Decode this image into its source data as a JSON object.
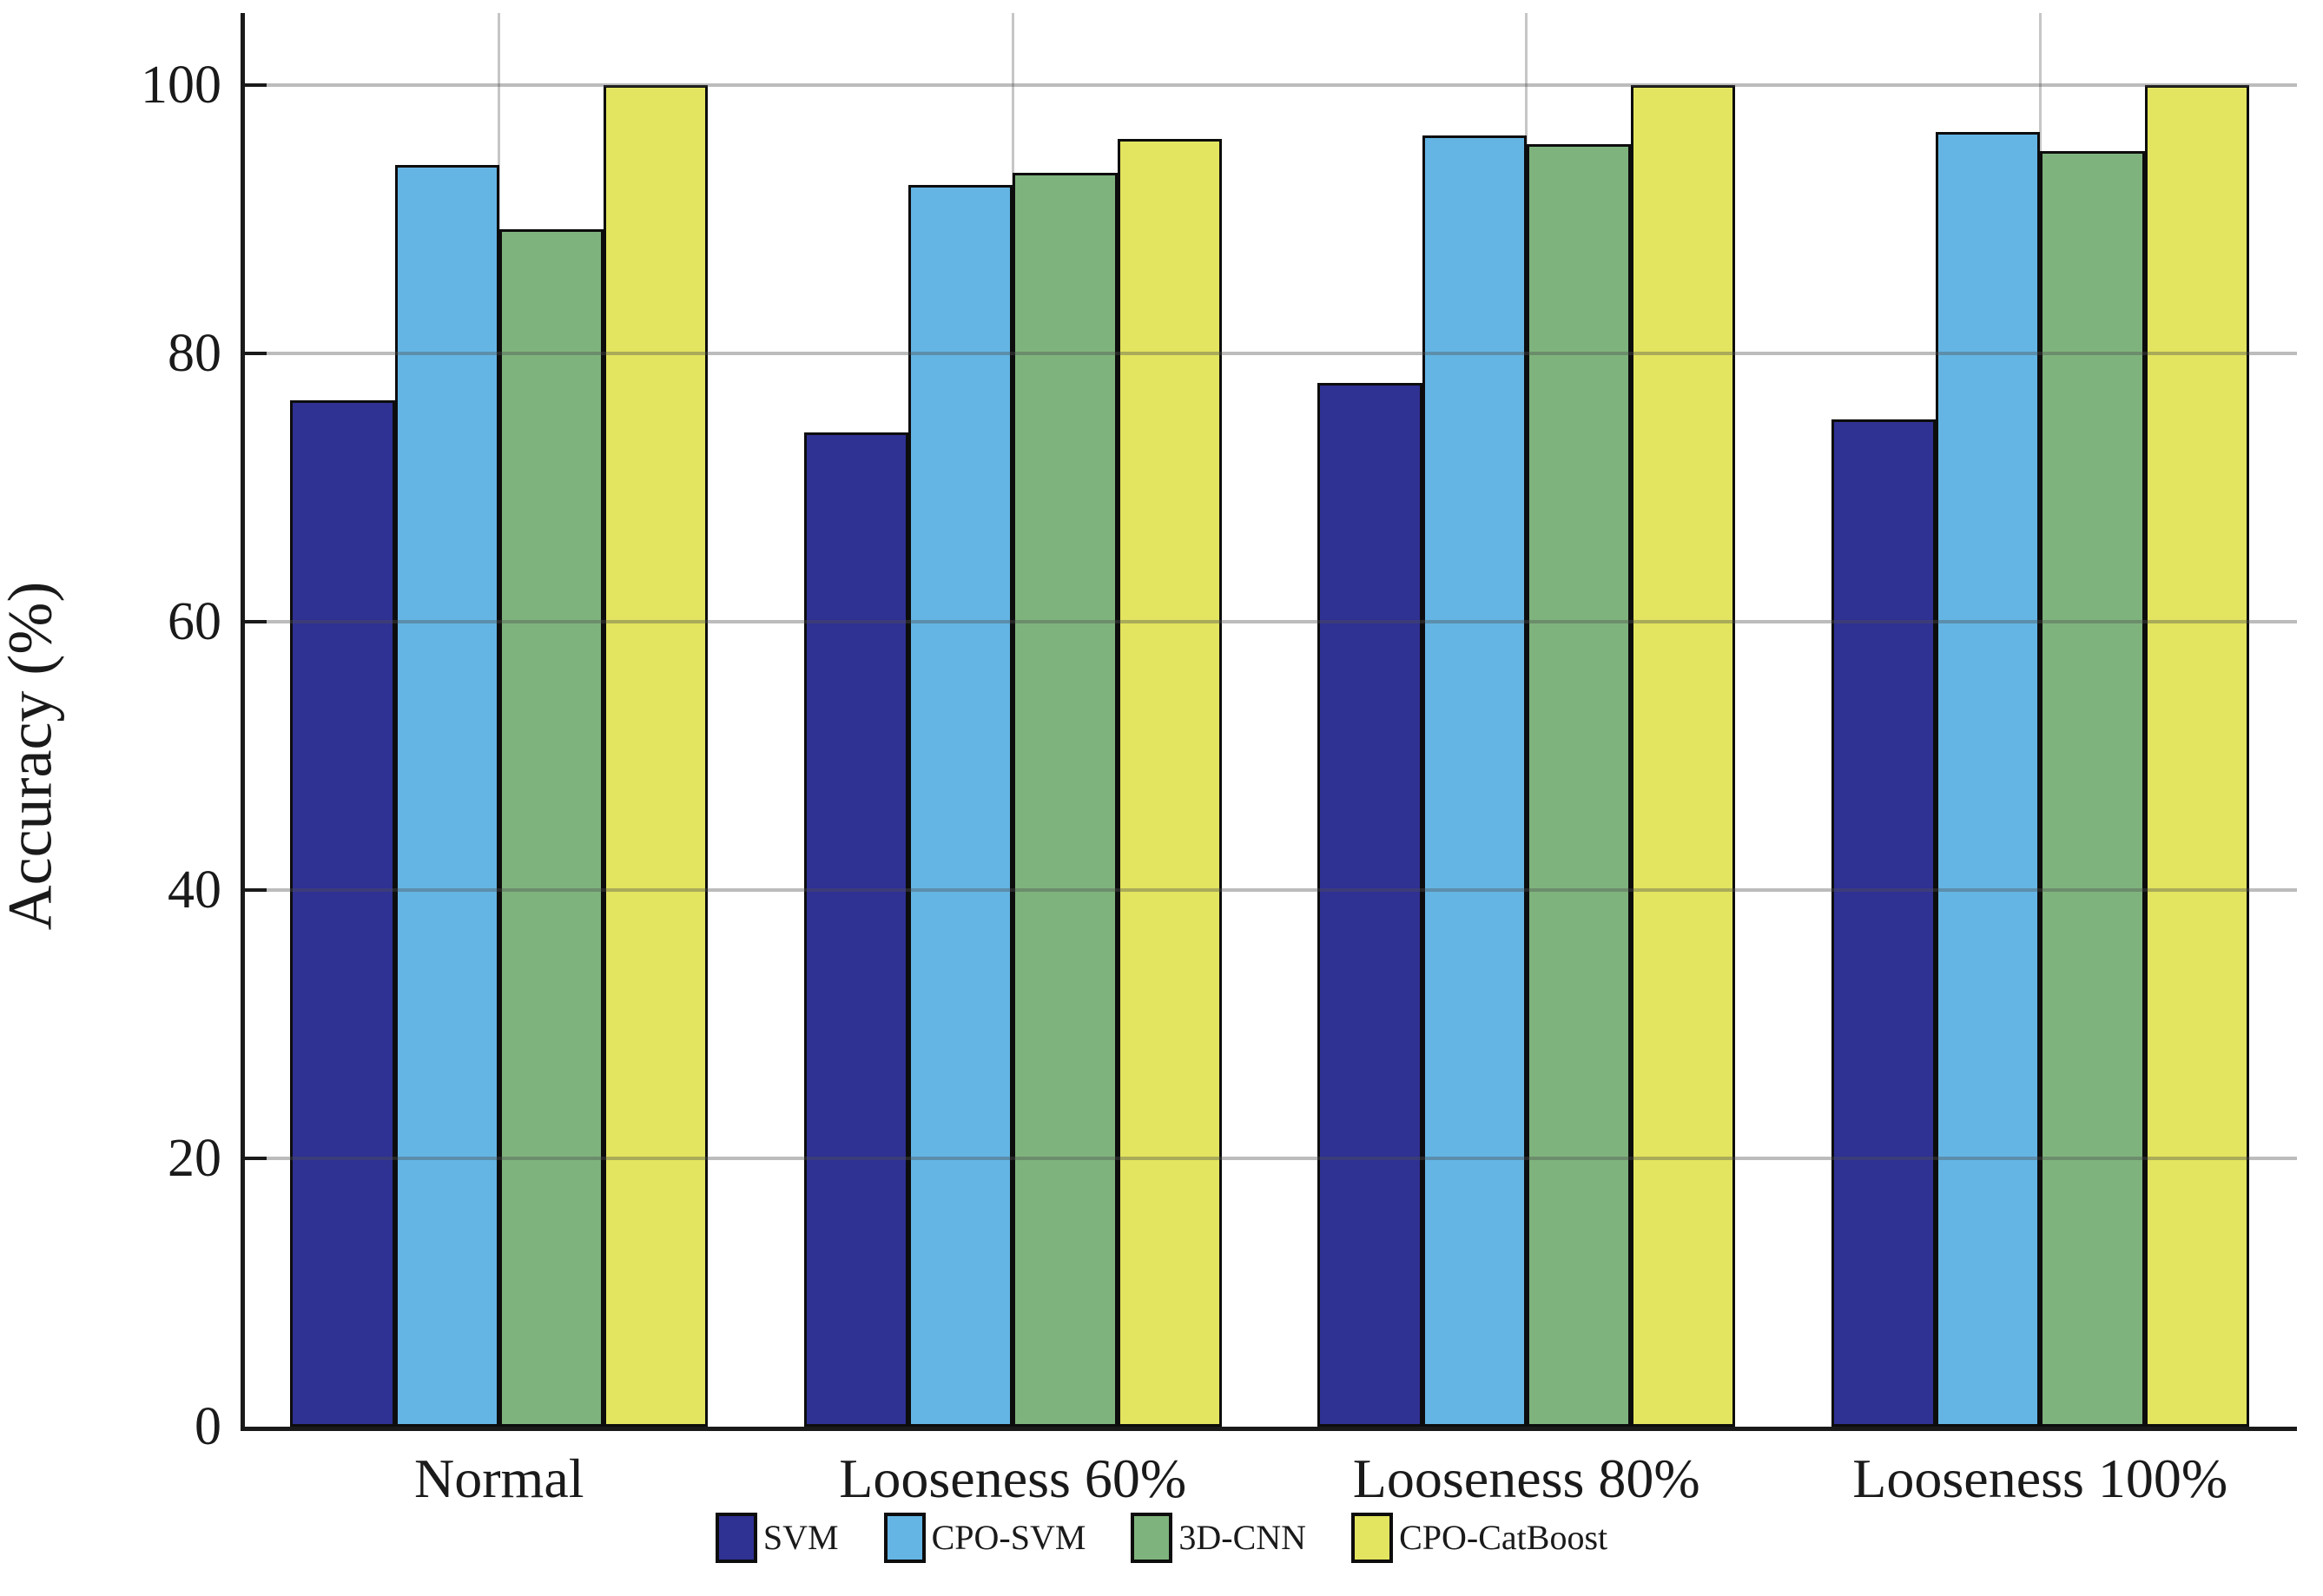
{
  "chart_data": {
    "type": "bar",
    "title": "",
    "categories": [
      "Normal",
      "Looseness 60%",
      "Looseness 80%",
      "Looseness 100%"
    ],
    "series": [
      {
        "name": "SVM",
        "color": "#2f3193",
        "values": [
          76.5,
          74.1,
          77.8,
          75.1
        ]
      },
      {
        "name": "CPO-SVM",
        "color": "#64b5e4",
        "values": [
          94.1,
          92.6,
          96.3,
          96.5
        ]
      },
      {
        "name": "3D-CNN",
        "color": "#7fb37d",
        "values": [
          89.3,
          93.5,
          95.6,
          95.1
        ]
      },
      {
        "name": "CPO-CatBoost",
        "color": "#e3e45f",
        "values": [
          100,
          96.0,
          100,
          100
        ]
      }
    ],
    "xlabel": "",
    "ylabel": "Accuracy (%)",
    "ylim": [
      0,
      105.4
    ],
    "yticks": [
      0,
      20,
      40,
      60,
      80,
      100
    ],
    "grid": true,
    "legend_position": "bottom",
    "colors": {
      "axis": "#1a1a1a",
      "hgrid": "#ababab",
      "vgrid": "#c6c6c6",
      "bar_edge": "#0d0d0d",
      "background": "#ffffff"
    }
  }
}
